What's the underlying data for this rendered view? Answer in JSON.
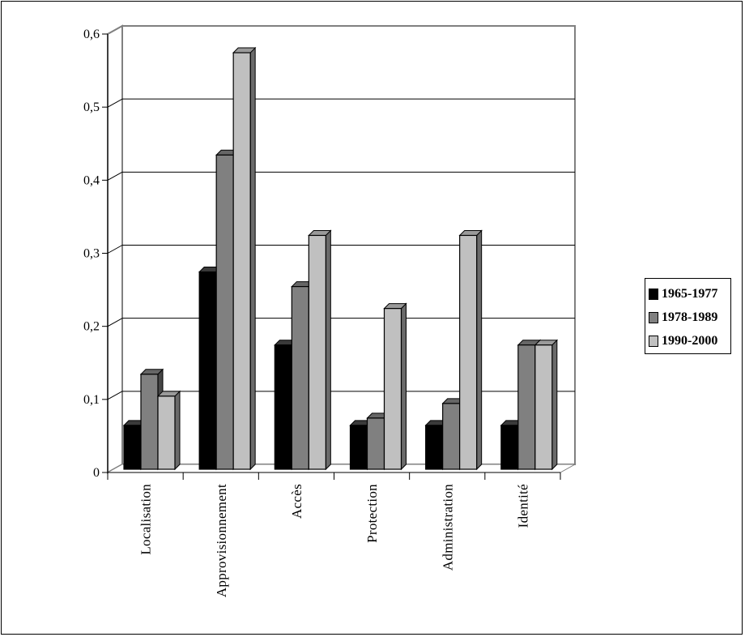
{
  "chart_data": {
    "type": "bar",
    "categories": [
      "Localisation",
      "Approvisionnement",
      "Accès",
      "Protection",
      "Administration",
      "Identité"
    ],
    "series": [
      {
        "name": "1965-1977",
        "color": "#000000",
        "values": [
          0.06,
          0.27,
          0.17,
          0.06,
          0.06,
          0.06
        ]
      },
      {
        "name": "1978-1989",
        "color": "#808080",
        "values": [
          0.13,
          0.43,
          0.25,
          0.07,
          0.09,
          0.17
        ]
      },
      {
        "name": "1990-2000",
        "color": "#c0c0c0",
        "values": [
          0.1,
          0.57,
          0.32,
          0.22,
          0.32,
          0.17
        ]
      }
    ],
    "yticks": [
      "0",
      "0,1",
      "0,2",
      "0,3",
      "0,4",
      "0,5",
      "0,6"
    ],
    "ylim": [
      0,
      0.6
    ],
    "grid": true,
    "style": "3d-clustered",
    "legend_position": "right"
  }
}
